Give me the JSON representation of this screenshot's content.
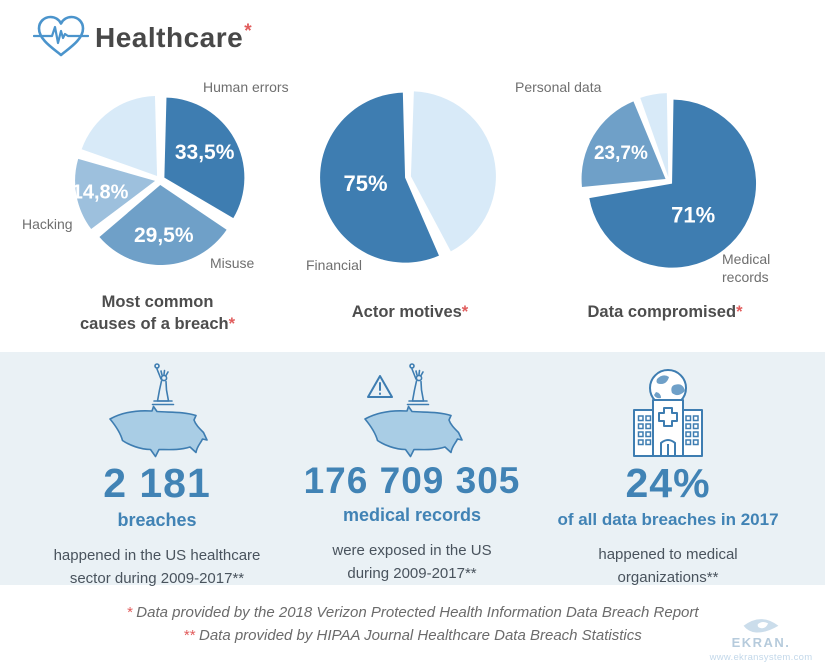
{
  "header": {
    "title": "Healthcare",
    "asterisk": "*"
  },
  "chart_data": [
    {
      "type": "pie",
      "caption": "Most common\ncauses of a breach",
      "asterisk": "*",
      "legend_position": "outside",
      "slices": [
        {
          "label": "Human errors",
          "value": 33.5,
          "pct_label": "33,5%",
          "color": "#3E7DB1",
          "start_deg": 1.5,
          "end_deg": 120.5,
          "label_deg": 57,
          "label_r": 0.6,
          "label_size": 21
        },
        {
          "label": "Misuse",
          "value": 29.5,
          "pct_label": "29,5%",
          "color": "#6FA0C8",
          "start_deg": 124,
          "end_deg": 229.5,
          "label_deg": 176,
          "label_r": 0.62,
          "label_size": 21
        },
        {
          "label": "Hacking",
          "value": 14.8,
          "pct_label": "14,8%",
          "color": "#9DC0DD",
          "start_deg": 233,
          "end_deg": 286,
          "label_deg": 259,
          "label_r": 0.7,
          "label_size": 20
        },
        {
          "label": "",
          "value": 22.2,
          "pct_label": "",
          "color": "#D8EAF8",
          "start_deg": 289.5,
          "end_deg": 358.5
        }
      ]
    },
    {
      "type": "pie",
      "caption": "Actor motives",
      "asterisk": "*",
      "legend_position": "outside",
      "slices": [
        {
          "label": "",
          "value": 25,
          "pct_label": "",
          "color": "#D8EAF8",
          "start_deg": 2,
          "end_deg": 152
        },
        {
          "label": "Financial",
          "value": 75,
          "pct_label": "75%",
          "color": "#3E7DB1",
          "start_deg": 156.5,
          "end_deg": 358.5,
          "label_deg": 262,
          "label_r": 0.47,
          "label_size": 22
        }
      ]
    },
    {
      "type": "pie",
      "caption": "Data compromised",
      "asterisk": "*",
      "legend_position": "outside",
      "slices": [
        {
          "label": "Medical records",
          "value": 71,
          "pct_label": "71%",
          "color": "#3E7DB1",
          "start_deg": 1,
          "end_deg": 260,
          "label_deg": 146,
          "label_r": 0.45,
          "label_size": 22
        },
        {
          "label": "Personal data",
          "value": 23.7,
          "pct_label": "23,7%",
          "color": "#6FA0C8",
          "start_deg": 264.5,
          "end_deg": 337.5,
          "label_deg": 301,
          "label_r": 0.62,
          "label_size": 19
        },
        {
          "label": "",
          "value": 5.3,
          "pct_label": "",
          "color": "#D8EAF8",
          "start_deg": 340.5,
          "end_deg": 359
        }
      ]
    }
  ],
  "stats": {
    "items": [
      {
        "icon": "usa-map-statue-of-liberty-icon",
        "number": "2 181",
        "unit": "breaches",
        "desc": "happened in the US healthcare\nsector during 2009-2017**"
      },
      {
        "icon": "usa-map-warning-statue-icon",
        "number": "176 709 305",
        "unit": "medical records",
        "desc": "were exposed in the US\nduring 2009-2017**"
      },
      {
        "icon": "hospital-globe-icon",
        "number": "24%",
        "unit": "of all data breaches in 2017",
        "desc": "happened to medical\norganizations**"
      }
    ]
  },
  "footnotes": [
    {
      "marker": "*",
      "text": "Data provided by the 2018 Verizon Protected Health Information Data Breach Report"
    },
    {
      "marker": "**",
      "text": "Data provided by HIPAA Journal Healthcare Data Breach Statistics"
    }
  ],
  "logo": {
    "name": "EKRAN.",
    "url": "www.ekransystem.com"
  },
  "colors": {
    "dark_blue": "#3E7DB1",
    "medium_blue": "#6FA0C8",
    "light_blue": "#9DC0DD",
    "pale_blue": "#D8EAF8",
    "stat_blue": "#4183B5",
    "band_bg": "#EAF1F5",
    "accent_red": "#E15C5C",
    "text_dark": "#4D4D4D",
    "text_gray": "#6F6F6F"
  }
}
